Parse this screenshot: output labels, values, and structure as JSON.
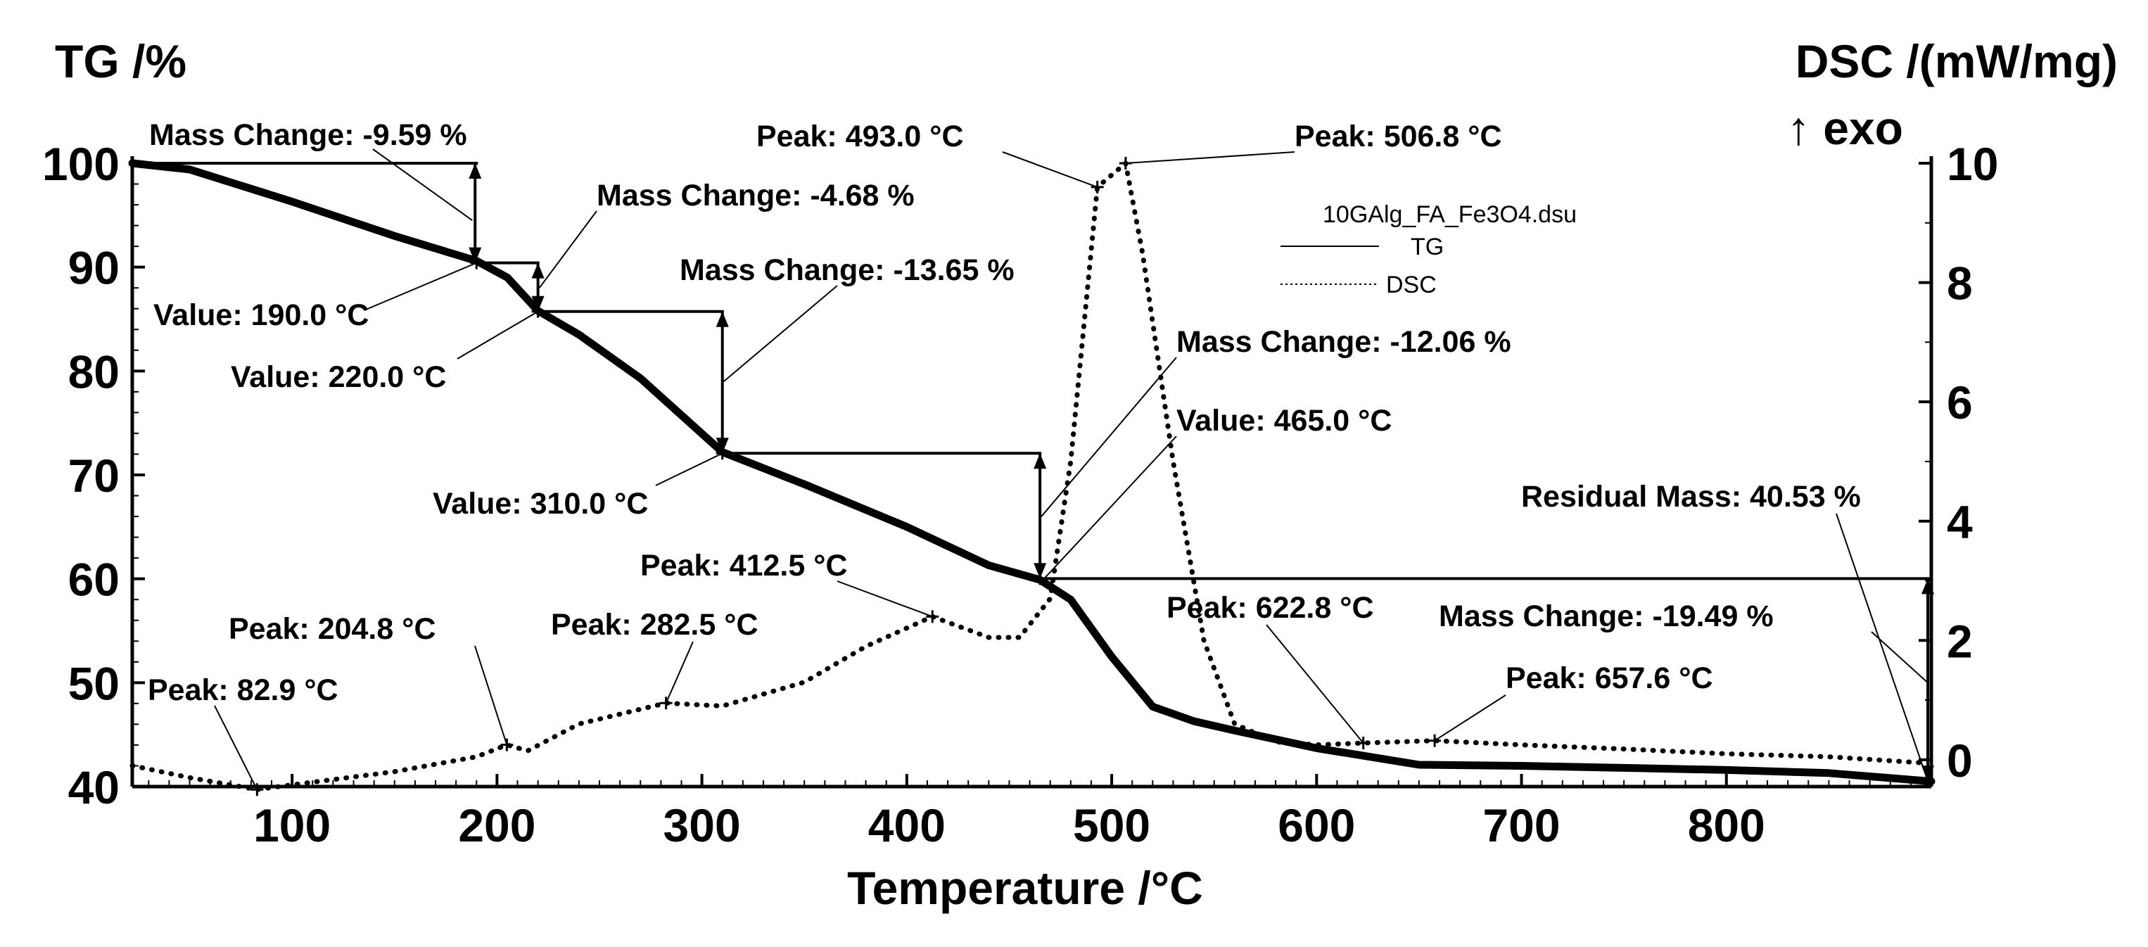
{
  "chart_data": {
    "type": "line",
    "xlabel": "Temperature /°C",
    "ylabel_left": "TG /%",
    "ylabel_right": "DSC /(mW/mg)",
    "ylabel_right_sub": "↑ exo",
    "xlim": [
      22,
      900
    ],
    "ylim_left": [
      40,
      100
    ],
    "ylim_right": [
      -0.45,
      10.0
    ],
    "x_ticks": [
      100,
      200,
      300,
      400,
      500,
      600,
      700,
      800
    ],
    "y_left_ticks": [
      40,
      50,
      60,
      70,
      80,
      90,
      100
    ],
    "y_right_ticks": [
      0,
      2,
      4,
      6,
      8,
      10
    ],
    "grid": false,
    "legend": {
      "title": "10GAlg_FA_Fe3O4.dsu",
      "entries": [
        {
          "name": "TG",
          "style": "solid"
        },
        {
          "name": "DSC",
          "style": "dotted"
        }
      ],
      "placement": "top-center"
    },
    "series": [
      {
        "name": "TG",
        "axis": "left",
        "x": [
          22,
          50,
          100,
          150,
          190,
          205,
          220,
          240,
          270,
          310,
          350,
          400,
          440,
          465,
          480,
          500,
          520,
          540,
          560,
          600,
          650,
          700,
          750,
          800,
          850,
          900
        ],
        "y": [
          100,
          99.4,
          96.3,
          93.0,
          90.6,
          89.0,
          85.8,
          83.5,
          79.3,
          72.2,
          69.1,
          65.0,
          61.3,
          59.9,
          58.0,
          52.5,
          47.7,
          46.3,
          45.4,
          43.7,
          42.1,
          42.0,
          41.8,
          41.6,
          41.3,
          40.5
        ]
      },
      {
        "name": "DSC",
        "axis": "right",
        "x": [
          22,
          50,
          82.9,
          100,
          150,
          190,
          204.8,
          215,
          240,
          282.5,
          310,
          350,
          380,
          412.5,
          440,
          455,
          470,
          480,
          493.0,
          506.8,
          515,
          530,
          545,
          560,
          580,
          600,
          622.8,
          640,
          657.6,
          700,
          750,
          800,
          850,
          895
        ],
        "y": [
          -0.1,
          -0.3,
          -0.5,
          -0.42,
          -0.2,
          0.05,
          0.25,
          0.15,
          0.6,
          0.95,
          0.9,
          1.3,
          1.9,
          2.4,
          2.05,
          2.05,
          2.7,
          5.0,
          9.6,
          10.0,
          8.5,
          5.0,
          2.0,
          0.6,
          0.3,
          0.25,
          0.28,
          0.3,
          0.32,
          0.25,
          0.18,
          0.1,
          0.05,
          -0.05
        ]
      }
    ],
    "annotations": {
      "mass_changes": [
        {
          "text": "Mass Change: -9.59 %",
          "x_from": 22,
          "x_to": 190,
          "y_top": 100,
          "y_bottom": 90.41
        },
        {
          "text": "Mass Change: -4.68 %",
          "x_from": 190,
          "x_to": 220,
          "y_top": 90.41,
          "y_bottom": 85.73
        },
        {
          "text": "Mass Change: -13.65 %",
          "x_from": 220,
          "x_to": 310,
          "y_top": 85.73,
          "y_bottom": 72.08
        },
        {
          "text": "Mass Change: -12.06 %",
          "x_from": 310,
          "x_to": 465,
          "y_top": 72.08,
          "y_bottom": 60.02
        },
        {
          "text": "Mass Change: -19.49 %",
          "x_from": 465,
          "x_to": 900,
          "y_top": 60.02,
          "y_bottom": 40.53
        }
      ],
      "values": [
        {
          "text": "Value: 190.0 °C",
          "x": 190,
          "y": 90.41
        },
        {
          "text": "Value: 220.0 °C",
          "x": 220,
          "y": 85.73
        },
        {
          "text": "Value: 310.0 °C",
          "x": 310,
          "y": 72.08
        },
        {
          "text": "Value: 465.0 °C",
          "x": 465,
          "y": 60.02
        }
      ],
      "residual": {
        "text": "Residual Mass: 40.53 %",
        "x": 900,
        "y": 40.53
      },
      "peaks": [
        {
          "text": "Peak: 82.9 °C",
          "x": 82.9,
          "y": -0.5
        },
        {
          "text": "Peak: 204.8 °C",
          "x": 204.8,
          "y": 0.25
        },
        {
          "text": "Peak: 282.5 °C",
          "x": 282.5,
          "y": 0.95
        },
        {
          "text": "Peak: 412.5 °C",
          "x": 412.5,
          "y": 2.4
        },
        {
          "text": "Peak: 493.0 °C",
          "x": 493.0,
          "y": 9.6
        },
        {
          "text": "Peak: 506.8 °C",
          "x": 506.8,
          "y": 10.0
        },
        {
          "text": "Peak: 622.8 °C",
          "x": 622.8,
          "y": 0.28
        },
        {
          "text": "Peak: 657.6 °C",
          "x": 657.6,
          "y": 0.32
        }
      ]
    }
  }
}
